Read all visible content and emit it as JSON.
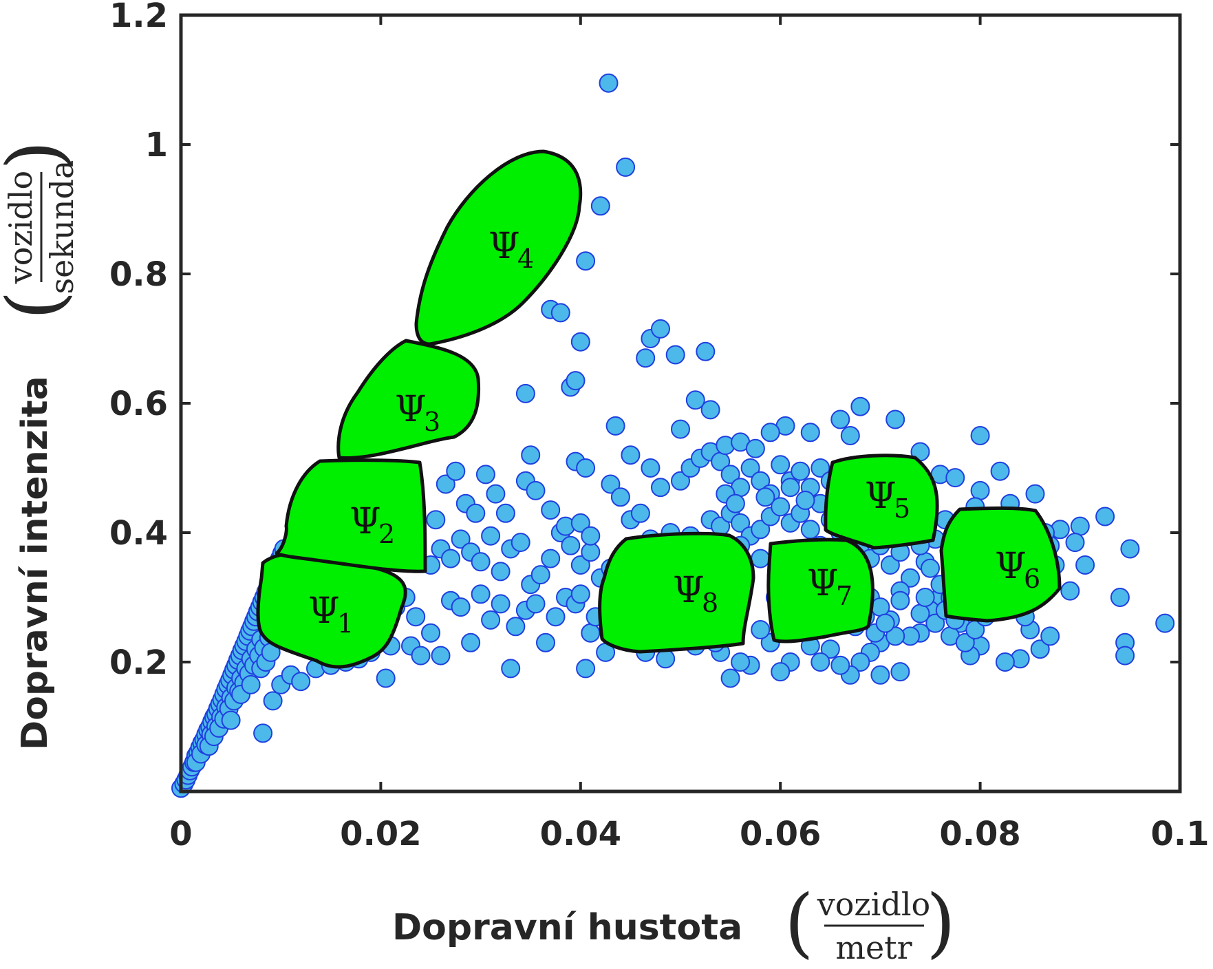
{
  "chart_data": {
    "type": "scatter",
    "xlabel": "Dopravní hustota",
    "xlabel_unit_num": "vozidlo",
    "xlabel_unit_den": "metr",
    "ylabel": "Dopravní intenzita",
    "ylabel_unit_num": "vozidlo",
    "ylabel_unit_den": "sekunda",
    "xlim": [
      0,
      0.1
    ],
    "ylim": [
      0,
      1.2
    ],
    "x_ticks": [
      "0",
      "0.02",
      "0.04",
      "0.06",
      "0.08",
      "0.1"
    ],
    "x_tick_values": [
      0,
      0.02,
      0.04,
      0.06,
      0.08,
      0.1
    ],
    "y_ticks": [
      "0.2",
      "0.4",
      "0.6",
      "0.8",
      "1",
      "1.2"
    ],
    "y_tick_values": [
      0.2,
      0.4,
      0.6,
      0.8,
      1.0,
      1.2
    ],
    "grid": false,
    "marker_fill": "#4db8ea",
    "marker_edge": "#1f3fe0",
    "region_fill": "#00ee00",
    "region_edge": "#111111",
    "points": [
      [
        0.0,
        0.005
      ],
      [
        0.0003,
        0.012
      ],
      [
        0.0005,
        0.018
      ],
      [
        0.0007,
        0.025
      ],
      [
        0.0009,
        0.032
      ],
      [
        0.0011,
        0.038
      ],
      [
        0.0013,
        0.045
      ],
      [
        0.0015,
        0.055
      ],
      [
        0.0017,
        0.06
      ],
      [
        0.0019,
        0.068
      ],
      [
        0.0021,
        0.075
      ],
      [
        0.0023,
        0.08
      ],
      [
        0.0025,
        0.088
      ],
      [
        0.0027,
        0.095
      ],
      [
        0.0029,
        0.1
      ],
      [
        0.0031,
        0.108
      ],
      [
        0.0033,
        0.115
      ],
      [
        0.0035,
        0.12
      ],
      [
        0.0037,
        0.128
      ],
      [
        0.0039,
        0.135
      ],
      [
        0.0041,
        0.142
      ],
      [
        0.0043,
        0.15
      ],
      [
        0.0045,
        0.158
      ],
      [
        0.0047,
        0.165
      ],
      [
        0.0049,
        0.172
      ],
      [
        0.0051,
        0.18
      ],
      [
        0.0053,
        0.188
      ],
      [
        0.0055,
        0.195
      ],
      [
        0.0057,
        0.203
      ],
      [
        0.0059,
        0.21
      ],
      [
        0.0061,
        0.218
      ],
      [
        0.0063,
        0.225
      ],
      [
        0.0065,
        0.232
      ],
      [
        0.0067,
        0.24
      ],
      [
        0.0069,
        0.248
      ],
      [
        0.0071,
        0.255
      ],
      [
        0.0073,
        0.263
      ],
      [
        0.0075,
        0.27
      ],
      [
        0.0077,
        0.278
      ],
      [
        0.0079,
        0.285
      ],
      [
        0.0081,
        0.293
      ],
      [
        0.0083,
        0.3
      ],
      [
        0.0085,
        0.308
      ],
      [
        0.0087,
        0.315
      ],
      [
        0.0089,
        0.322
      ],
      [
        0.0091,
        0.33
      ],
      [
        0.0093,
        0.338
      ],
      [
        0.0095,
        0.345
      ],
      [
        0.0097,
        0.352
      ],
      [
        0.0099,
        0.36
      ],
      [
        0.0101,
        0.368
      ],
      [
        0.0103,
        0.375
      ],
      [
        0.0015,
        0.045
      ],
      [
        0.002,
        0.058
      ],
      [
        0.0025,
        0.072
      ],
      [
        0.003,
        0.088
      ],
      [
        0.0035,
        0.1
      ],
      [
        0.004,
        0.115
      ],
      [
        0.0045,
        0.13
      ],
      [
        0.005,
        0.145
      ],
      [
        0.0055,
        0.16
      ],
      [
        0.006,
        0.175
      ],
      [
        0.0065,
        0.19
      ],
      [
        0.007,
        0.205
      ],
      [
        0.0075,
        0.22
      ],
      [
        0.008,
        0.235
      ],
      [
        0.0028,
        0.07
      ],
      [
        0.0033,
        0.085
      ],
      [
        0.0038,
        0.098
      ],
      [
        0.0043,
        0.112
      ],
      [
        0.0048,
        0.128
      ],
      [
        0.0053,
        0.14
      ],
      [
        0.0058,
        0.155
      ],
      [
        0.0063,
        0.168
      ],
      [
        0.0068,
        0.182
      ],
      [
        0.0073,
        0.195
      ],
      [
        0.0078,
        0.21
      ],
      [
        0.0083,
        0.222
      ],
      [
        0.0088,
        0.238
      ],
      [
        0.0093,
        0.25
      ],
      [
        0.0098,
        0.265
      ],
      [
        0.0105,
        0.28
      ],
      [
        0.011,
        0.295
      ],
      [
        0.0115,
        0.31
      ],
      [
        0.005,
        0.11
      ],
      [
        0.006,
        0.15
      ],
      [
        0.007,
        0.165
      ],
      [
        0.008,
        0.19
      ],
      [
        0.0085,
        0.2
      ],
      [
        0.009,
        0.215
      ],
      [
        0.0082,
        0.09
      ],
      [
        0.0092,
        0.14
      ],
      [
        0.01,
        0.165
      ],
      [
        0.011,
        0.18
      ],
      [
        0.012,
        0.17
      ],
      [
        0.0135,
        0.19
      ],
      [
        0.015,
        0.195
      ],
      [
        0.0165,
        0.2
      ],
      [
        0.0178,
        0.205
      ],
      [
        0.019,
        0.215
      ],
      [
        0.02,
        0.24
      ],
      [
        0.0205,
        0.175
      ],
      [
        0.021,
        0.225
      ],
      [
        0.023,
        0.225
      ],
      [
        0.024,
        0.21
      ],
      [
        0.0215,
        0.285
      ],
      [
        0.0225,
        0.3
      ],
      [
        0.0235,
        0.27
      ],
      [
        0.025,
        0.245
      ],
      [
        0.026,
        0.21
      ],
      [
        0.027,
        0.295
      ],
      [
        0.028,
        0.285
      ],
      [
        0.029,
        0.23
      ],
      [
        0.03,
        0.305
      ],
      [
        0.031,
        0.265
      ],
      [
        0.032,
        0.29
      ],
      [
        0.033,
        0.19
      ],
      [
        0.0335,
        0.255
      ],
      [
        0.0345,
        0.28
      ],
      [
        0.0355,
        0.29
      ],
      [
        0.0365,
        0.23
      ],
      [
        0.0375,
        0.27
      ],
      [
        0.0385,
        0.3
      ],
      [
        0.0395,
        0.29
      ],
      [
        0.04,
        0.305
      ],
      [
        0.0405,
        0.19
      ],
      [
        0.041,
        0.245
      ],
      [
        0.0415,
        0.27
      ],
      [
        0.0425,
        0.215
      ],
      [
        0.025,
        0.35
      ],
      [
        0.026,
        0.375
      ],
      [
        0.027,
        0.36
      ],
      [
        0.028,
        0.39
      ],
      [
        0.029,
        0.37
      ],
      [
        0.03,
        0.355
      ],
      [
        0.031,
        0.395
      ],
      [
        0.032,
        0.34
      ],
      [
        0.033,
        0.375
      ],
      [
        0.034,
        0.385
      ],
      [
        0.035,
        0.32
      ],
      [
        0.036,
        0.335
      ],
      [
        0.037,
        0.36
      ],
      [
        0.038,
        0.4
      ],
      [
        0.039,
        0.38
      ],
      [
        0.04,
        0.35
      ],
      [
        0.041,
        0.37
      ],
      [
        0.042,
        0.33
      ],
      [
        0.043,
        0.345
      ],
      [
        0.0255,
        0.42
      ],
      [
        0.0265,
        0.475
      ],
      [
        0.0275,
        0.495
      ],
      [
        0.0285,
        0.445
      ],
      [
        0.0295,
        0.43
      ],
      [
        0.0305,
        0.49
      ],
      [
        0.0315,
        0.46
      ],
      [
        0.0325,
        0.43
      ],
      [
        0.0345,
        0.48
      ],
      [
        0.035,
        0.52
      ],
      [
        0.0355,
        0.465
      ],
      [
        0.037,
        0.435
      ],
      [
        0.0385,
        0.41
      ],
      [
        0.04,
        0.415
      ],
      [
        0.041,
        0.395
      ],
      [
        0.0395,
        0.51
      ],
      [
        0.0405,
        0.5
      ],
      [
        0.043,
        0.475
      ],
      [
        0.044,
        0.455
      ],
      [
        0.045,
        0.42
      ],
      [
        0.046,
        0.43
      ],
      [
        0.0345,
        0.615
      ],
      [
        0.039,
        0.625
      ],
      [
        0.0395,
        0.635
      ],
      [
        0.04,
        0.695
      ],
      [
        0.037,
        0.745
      ],
      [
        0.038,
        0.74
      ],
      [
        0.0405,
        0.82
      ],
      [
        0.042,
        0.905
      ],
      [
        0.0445,
        0.965
      ],
      [
        0.0428,
        1.095
      ],
      [
        0.0465,
        0.67
      ],
      [
        0.047,
        0.7
      ],
      [
        0.048,
        0.715
      ],
      [
        0.0495,
        0.675
      ],
      [
        0.0525,
        0.68
      ],
      [
        0.045,
        0.52
      ],
      [
        0.0435,
        0.565
      ],
      [
        0.047,
        0.5
      ],
      [
        0.048,
        0.47
      ],
      [
        0.05,
        0.48
      ],
      [
        0.051,
        0.5
      ],
      [
        0.052,
        0.515
      ],
      [
        0.053,
        0.525
      ],
      [
        0.054,
        0.51
      ],
      [
        0.055,
        0.49
      ],
      [
        0.056,
        0.47
      ],
      [
        0.057,
        0.5
      ],
      [
        0.058,
        0.48
      ],
      [
        0.059,
        0.46
      ],
      [
        0.06,
        0.505
      ],
      [
        0.061,
        0.48
      ],
      [
        0.062,
        0.495
      ],
      [
        0.063,
        0.47
      ],
      [
        0.064,
        0.5
      ],
      [
        0.065,
        0.48
      ],
      [
        0.05,
        0.56
      ],
      [
        0.0515,
        0.605
      ],
      [
        0.053,
        0.59
      ],
      [
        0.0545,
        0.535
      ],
      [
        0.0605,
        0.565
      ],
      [
        0.063,
        0.555
      ],
      [
        0.066,
        0.575
      ],
      [
        0.067,
        0.55
      ],
      [
        0.068,
        0.595
      ],
      [
        0.0715,
        0.575
      ],
      [
        0.074,
        0.525
      ],
      [
        0.076,
        0.49
      ],
      [
        0.0775,
        0.485
      ],
      [
        0.08,
        0.465
      ],
      [
        0.08,
        0.55
      ],
      [
        0.082,
        0.495
      ],
      [
        0.083,
        0.445
      ],
      [
        0.0855,
        0.46
      ],
      [
        0.088,
        0.405
      ],
      [
        0.09,
        0.41
      ],
      [
        0.0905,
        0.35
      ],
      [
        0.0925,
        0.425
      ],
      [
        0.094,
        0.3
      ],
      [
        0.0945,
        0.23
      ],
      [
        0.0945,
        0.21
      ],
      [
        0.095,
        0.375
      ],
      [
        0.0985,
        0.26
      ],
      [
        0.089,
        0.31
      ],
      [
        0.087,
        0.38
      ],
      [
        0.086,
        0.22
      ],
      [
        0.085,
        0.25
      ],
      [
        0.084,
        0.205
      ],
      [
        0.0825,
        0.2
      ],
      [
        0.081,
        0.29
      ],
      [
        0.08,
        0.225
      ],
      [
        0.079,
        0.21
      ],
      [
        0.078,
        0.26
      ],
      [
        0.077,
        0.24
      ],
      [
        0.076,
        0.3
      ],
      [
        0.075,
        0.28
      ],
      [
        0.074,
        0.245
      ],
      [
        0.073,
        0.33
      ],
      [
        0.072,
        0.31
      ],
      [
        0.071,
        0.265
      ],
      [
        0.07,
        0.23
      ],
      [
        0.069,
        0.215
      ],
      [
        0.068,
        0.2
      ],
      [
        0.067,
        0.18
      ],
      [
        0.066,
        0.195
      ],
      [
        0.065,
        0.22
      ],
      [
        0.064,
        0.2
      ],
      [
        0.063,
        0.225
      ],
      [
        0.062,
        0.26
      ],
      [
        0.061,
        0.2
      ],
      [
        0.06,
        0.185
      ],
      [
        0.059,
        0.23
      ],
      [
        0.058,
        0.25
      ],
      [
        0.057,
        0.195
      ],
      [
        0.056,
        0.2
      ],
      [
        0.055,
        0.175
      ],
      [
        0.054,
        0.215
      ],
      [
        0.072,
        0.185
      ],
      [
        0.073,
        0.24
      ],
      [
        0.07,
        0.18
      ],
      [
        0.0715,
        0.24
      ],
      [
        0.0745,
        0.355
      ],
      [
        0.0755,
        0.39
      ],
      [
        0.0765,
        0.42
      ],
      [
        0.0775,
        0.375
      ],
      [
        0.0785,
        0.4
      ],
      [
        0.0795,
        0.44
      ],
      [
        0.081,
        0.42
      ],
      [
        0.082,
        0.355
      ],
      [
        0.0835,
        0.3
      ],
      [
        0.0845,
        0.27
      ],
      [
        0.0855,
        0.33
      ],
      [
        0.0865,
        0.4
      ],
      [
        0.0875,
        0.35
      ],
      [
        0.0895,
        0.385
      ],
      [
        0.087,
        0.24
      ],
      [
        0.0465,
        0.215
      ],
      [
        0.0475,
        0.23
      ],
      [
        0.0485,
        0.205
      ],
      [
        0.0495,
        0.24
      ],
      [
        0.0505,
        0.26
      ],
      [
        0.0515,
        0.225
      ],
      [
        0.0525,
        0.245
      ],
      [
        0.0535,
        0.23
      ],
      [
        0.0545,
        0.25
      ],
      [
        0.0555,
        0.24
      ],
      [
        0.046,
        0.38
      ],
      [
        0.047,
        0.39
      ],
      [
        0.048,
        0.37
      ],
      [
        0.049,
        0.4
      ],
      [
        0.05,
        0.385
      ],
      [
        0.051,
        0.395
      ],
      [
        0.052,
        0.38
      ],
      [
        0.053,
        0.42
      ],
      [
        0.054,
        0.41
      ],
      [
        0.055,
        0.43
      ],
      [
        0.056,
        0.415
      ],
      [
        0.057,
        0.395
      ],
      [
        0.058,
        0.405
      ],
      [
        0.059,
        0.425
      ],
      [
        0.06,
        0.44
      ],
      [
        0.061,
        0.415
      ],
      [
        0.062,
        0.43
      ],
      [
        0.063,
        0.405
      ],
      [
        0.064,
        0.445
      ],
      [
        0.065,
        0.42
      ],
      [
        0.066,
        0.4
      ],
      [
        0.067,
        0.39
      ],
      [
        0.068,
        0.37
      ],
      [
        0.069,
        0.36
      ],
      [
        0.07,
        0.38
      ],
      [
        0.071,
        0.35
      ],
      [
        0.072,
        0.37
      ],
      [
        0.073,
        0.395
      ],
      [
        0.074,
        0.38
      ],
      [
        0.075,
        0.345
      ],
      [
        0.076,
        0.32
      ],
      [
        0.077,
        0.3
      ],
      [
        0.078,
        0.33
      ],
      [
        0.079,
        0.28
      ],
      [
        0.08,
        0.305
      ],
      [
        0.081,
        0.32
      ],
      [
        0.07,
        0.43
      ],
      [
        0.071,
        0.455
      ],
      [
        0.072,
        0.47
      ],
      [
        0.073,
        0.44
      ],
      [
        0.069,
        0.485
      ],
      [
        0.056,
        0.54
      ],
      [
        0.0575,
        0.53
      ],
      [
        0.059,
        0.555
      ],
      [
        0.0545,
        0.46
      ],
      [
        0.0555,
        0.445
      ],
      [
        0.0585,
        0.455
      ],
      [
        0.061,
        0.47
      ],
      [
        0.0625,
        0.45
      ],
      [
        0.0655,
        0.455
      ],
      [
        0.0665,
        0.47
      ],
      [
        0.067,
        0.44
      ],
      [
        0.064,
        0.38
      ],
      [
        0.062,
        0.37
      ],
      [
        0.06,
        0.355
      ],
      [
        0.058,
        0.36
      ],
      [
        0.056,
        0.38
      ],
      [
        0.065,
        0.36
      ],
      [
        0.066,
        0.34
      ],
      [
        0.068,
        0.315
      ],
      [
        0.069,
        0.3
      ],
      [
        0.07,
        0.285
      ],
      [
        0.072,
        0.295
      ],
      [
        0.074,
        0.275
      ],
      [
        0.0745,
        0.3
      ],
      [
        0.0755,
        0.26
      ],
      [
        0.0765,
        0.28
      ],
      [
        0.0775,
        0.265
      ],
      [
        0.0785,
        0.23
      ],
      [
        0.0795,
        0.25
      ],
      [
        0.0805,
        0.27
      ],
      [
        0.0595,
        0.3
      ],
      [
        0.0605,
        0.32
      ],
      [
        0.0615,
        0.29
      ],
      [
        0.0625,
        0.31
      ],
      [
        0.0635,
        0.28
      ],
      [
        0.0645,
        0.3
      ],
      [
        0.0655,
        0.265
      ],
      [
        0.0665,
        0.275
      ],
      [
        0.0675,
        0.255
      ],
      [
        0.0685,
        0.27
      ],
      [
        0.0695,
        0.245
      ],
      [
        0.0705,
        0.26
      ]
    ],
    "regions": [
      {
        "name": "Ψ",
        "index": "1"
      },
      {
        "name": "Ψ",
        "index": "2"
      },
      {
        "name": "Ψ",
        "index": "3"
      },
      {
        "name": "Ψ",
        "index": "4"
      },
      {
        "name": "Ψ",
        "index": "5"
      },
      {
        "name": "Ψ",
        "index": "6"
      },
      {
        "name": "Ψ",
        "index": "7"
      },
      {
        "name": "Ψ",
        "index": "8"
      }
    ]
  }
}
